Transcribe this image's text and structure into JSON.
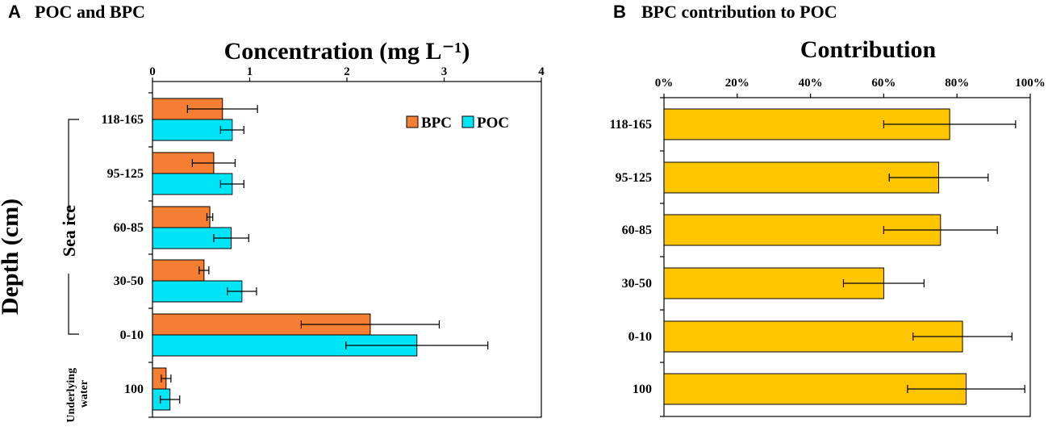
{
  "panels": [
    {
      "letter": "A",
      "title": "POC and BPC",
      "axis_title": "Concentration (mg L⁻¹)"
    },
    {
      "letter": "B",
      "title": "BPC contribution to POC",
      "axis_title": "Contribution"
    }
  ],
  "yaxis_title": "Depth (cm)",
  "groups": {
    "sea_ice": "Sea ice",
    "underlying_water": [
      "Underlying",
      "water"
    ]
  },
  "colors": {
    "bpc": "#F47E32",
    "poc": "#00E5F5",
    "contribution": "#FFC600"
  },
  "chart_data": [
    {
      "type": "bar",
      "orientation": "horizontal",
      "title": "POC and BPC",
      "xlabel": "Concentration (mg L⁻¹)",
      "ylabel": "Depth (cm)",
      "xlim": [
        0,
        4
      ],
      "xticks": [
        "0",
        "1",
        "2",
        "3",
        "4"
      ],
      "categories": [
        "118-165",
        "95-125",
        "60-85",
        "30-50",
        "0-10",
        "100"
      ],
      "legend": {
        "position": "top-right",
        "entries": [
          "BPC",
          "POC"
        ]
      },
      "series": [
        {
          "name": "BPC",
          "values": [
            0.72,
            0.63,
            0.59,
            0.53,
            2.24,
            0.14
          ],
          "errors": [
            0.36,
            0.22,
            0.03,
            0.05,
            0.71,
            0.05
          ]
        },
        {
          "name": "POC",
          "values": [
            0.82,
            0.82,
            0.81,
            0.92,
            2.72,
            0.18
          ],
          "errors": [
            0.12,
            0.12,
            0.18,
            0.15,
            0.73,
            0.1
          ]
        }
      ]
    },
    {
      "type": "bar",
      "orientation": "horizontal",
      "title": "BPC contribution to POC",
      "xlabel": "Contribution",
      "ylabel": "",
      "xlim": [
        0,
        100
      ],
      "xticks": [
        "0%",
        "20%",
        "40%",
        "60%",
        "80%",
        "100%"
      ],
      "categories": [
        "118-165",
        "95-125",
        "60-85",
        "30-50",
        "0-10",
        "100"
      ],
      "series": [
        {
          "name": "BPC contribution",
          "values": [
            78,
            75,
            75.5,
            60,
            81.5,
            82.5
          ],
          "errors": [
            18,
            13.5,
            15.5,
            11,
            13.5,
            16
          ]
        }
      ]
    }
  ]
}
